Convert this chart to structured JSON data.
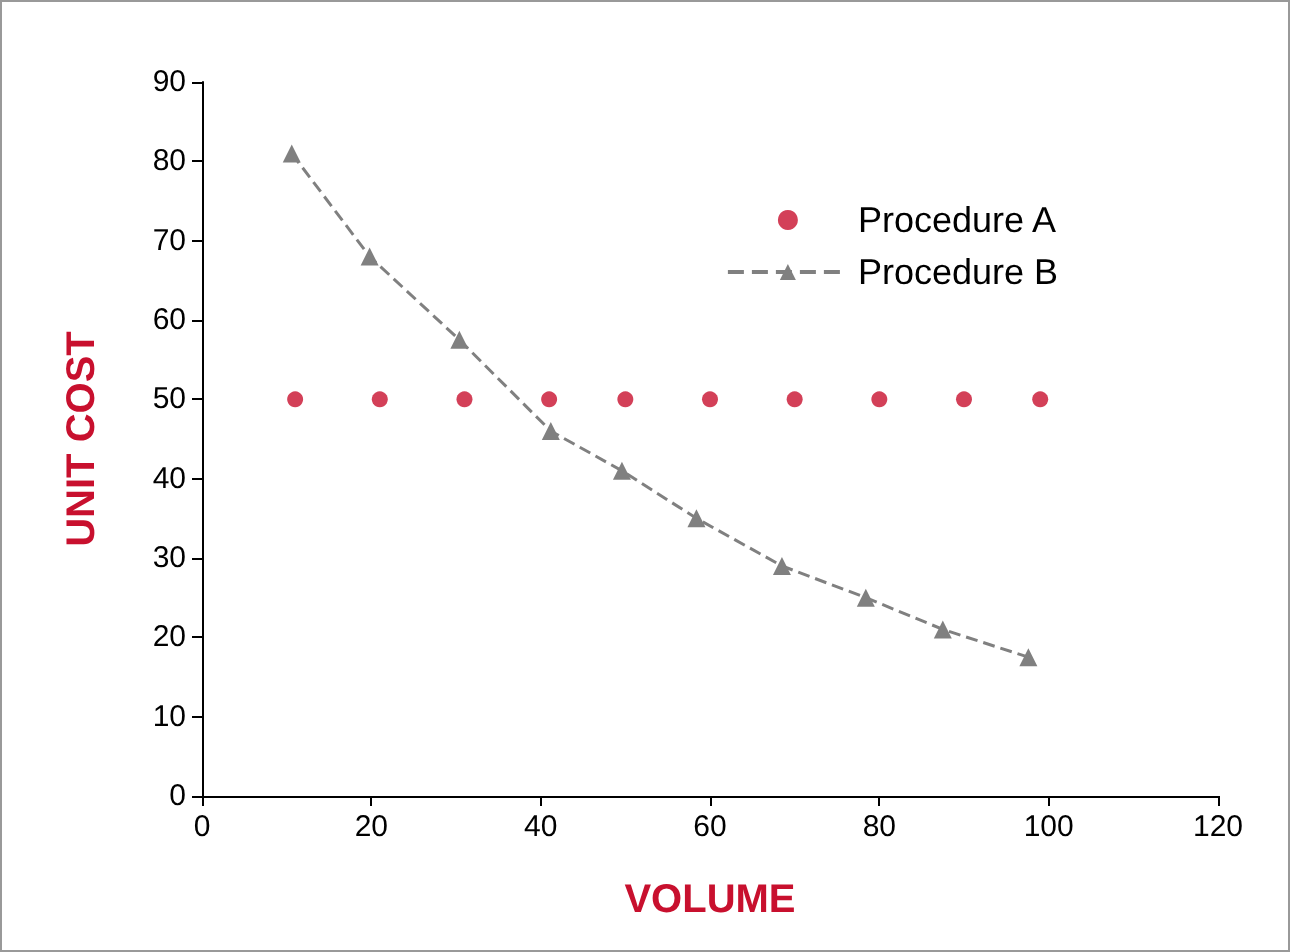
{
  "chart_data": {
    "type": "scatter",
    "xlabel": "VOLUME",
    "ylabel": "UNIT COST",
    "xlim": [
      0,
      120
    ],
    "xticks": [
      0,
      20,
      40,
      60,
      80,
      100,
      120
    ],
    "ylim": [
      0,
      90
    ],
    "yticks": [
      0,
      10,
      20,
      30,
      40,
      50,
      60,
      70,
      80,
      90
    ],
    "grid": false,
    "legend": "top right",
    "series": [
      {
        "name": "Procedure A",
        "color": "#c8102e",
        "marker": "circle",
        "x": [
          11,
          21,
          31,
          41,
          50,
          60,
          70,
          80,
          90,
          99
        ],
        "values": [
          50,
          50,
          50,
          50,
          50,
          50,
          50,
          50,
          50,
          50
        ]
      },
      {
        "name": "Procedure B",
        "type": "line",
        "color": "#808080",
        "marker": "triangle",
        "line_style": "dashed",
        "x": [
          10.6,
          19.8,
          30.4,
          41.2,
          49.6,
          58.4,
          68.5,
          78.4,
          87.5,
          97.6
        ],
        "values": [
          81,
          68,
          57.5,
          46,
          41,
          35,
          29,
          25,
          21,
          17.5
        ]
      }
    ]
  }
}
